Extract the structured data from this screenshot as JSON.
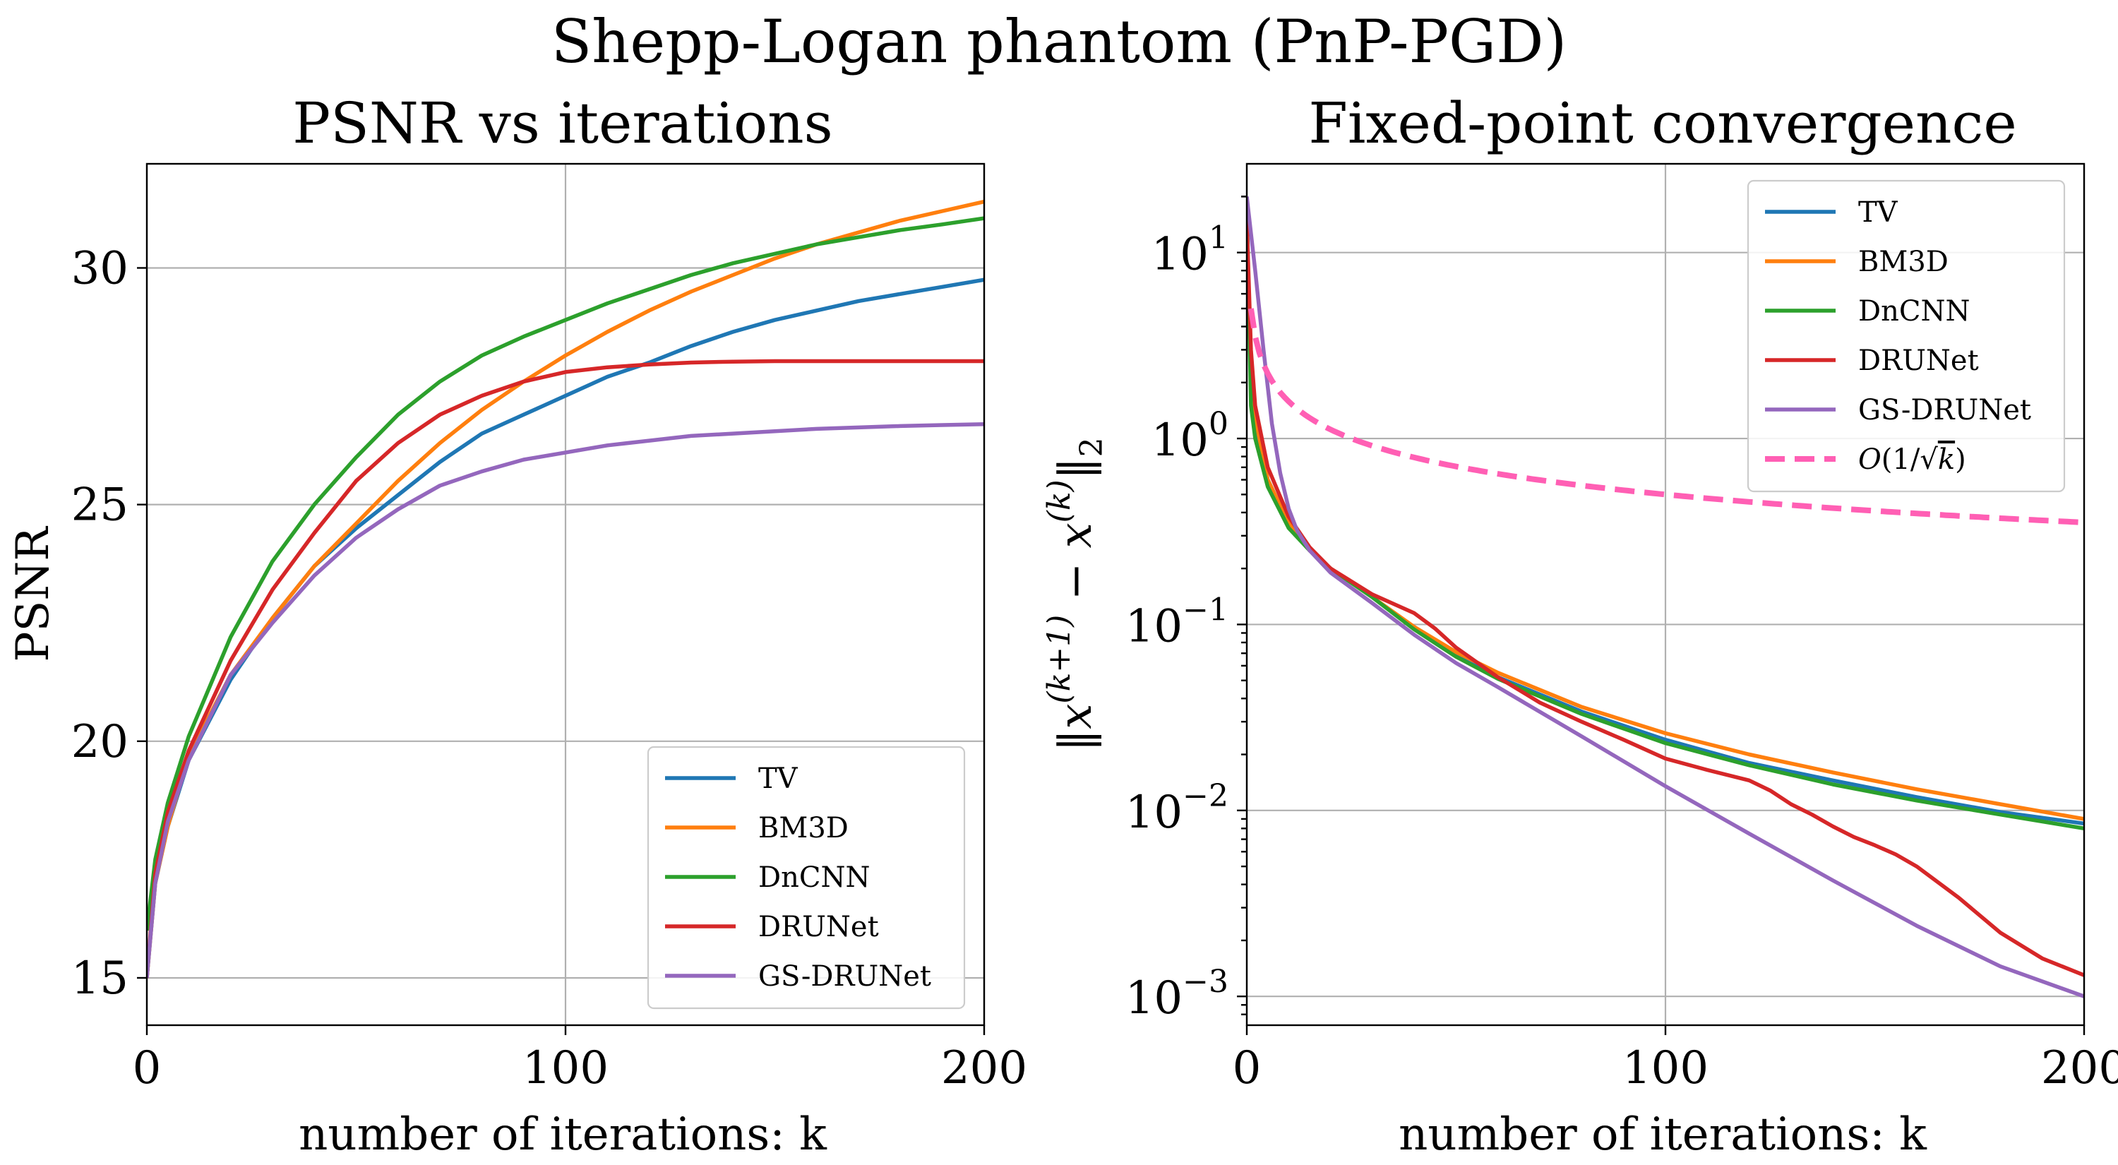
{
  "suptitle": "Shepp-Logan phantom (PnP-PGD)",
  "colors": {
    "TV": "#1f77b4",
    "BM3D": "#ff7f0e",
    "DnCNN": "#2ca02c",
    "DRUNet": "#d62728",
    "GS-DRUNet": "#9467bd",
    "ref": "#ff5fb4"
  },
  "chart_data": [
    {
      "type": "line",
      "title": "PSNR vs iterations",
      "xlabel": "number of iterations: k",
      "ylabel": "PSNR",
      "xlim": [
        0,
        200
      ],
      "ylim": [
        14,
        32.2
      ],
      "xticks": [
        0,
        100,
        200
      ],
      "xtick_labels": [
        "0",
        "100",
        "200"
      ],
      "yticks": [
        15,
        20,
        25,
        30
      ],
      "ytick_labels": [
        "15",
        "20",
        "25",
        "30"
      ],
      "yscale": "linear",
      "grid": true,
      "legend": "lower-right",
      "series": [
        {
          "name": "TV",
          "x": [
            0,
            2,
            5,
            10,
            20,
            30,
            40,
            50,
            60,
            70,
            80,
            90,
            100,
            110,
            120,
            130,
            140,
            150,
            160,
            170,
            180,
            190,
            200
          ],
          "y": [
            15.0,
            17.0,
            18.2,
            19.6,
            21.3,
            22.6,
            23.7,
            24.5,
            25.2,
            25.9,
            26.5,
            26.9,
            27.3,
            27.7,
            28.0,
            28.35,
            28.65,
            28.9,
            29.1,
            29.3,
            29.45,
            29.6,
            29.75
          ]
        },
        {
          "name": "BM3D",
          "x": [
            0,
            2,
            5,
            10,
            20,
            30,
            40,
            50,
            60,
            70,
            80,
            90,
            100,
            110,
            120,
            130,
            140,
            150,
            160,
            170,
            180,
            190,
            200
          ],
          "y": [
            15.0,
            17.0,
            18.2,
            19.7,
            21.4,
            22.6,
            23.7,
            24.6,
            25.5,
            26.3,
            27.0,
            27.6,
            28.15,
            28.65,
            29.1,
            29.5,
            29.85,
            30.2,
            30.5,
            30.75,
            31.0,
            31.2,
            31.4
          ]
        },
        {
          "name": "DnCNN",
          "x": [
            0,
            2,
            5,
            10,
            20,
            30,
            40,
            50,
            60,
            70,
            80,
            90,
            100,
            110,
            120,
            130,
            140,
            150,
            160,
            170,
            180,
            190,
            200
          ],
          "y": [
            16.0,
            17.5,
            18.7,
            20.1,
            22.2,
            23.8,
            25.0,
            26.0,
            26.9,
            27.6,
            28.15,
            28.55,
            28.9,
            29.25,
            29.55,
            29.85,
            30.1,
            30.3,
            30.5,
            30.65,
            30.8,
            30.92,
            31.05
          ]
        },
        {
          "name": "DRUNet",
          "x": [
            0,
            2,
            5,
            10,
            20,
            30,
            40,
            50,
            60,
            70,
            80,
            90,
            100,
            110,
            120,
            130,
            140,
            150,
            160,
            170,
            180,
            190,
            200
          ],
          "y": [
            15.0,
            17.2,
            18.5,
            19.8,
            21.7,
            23.2,
            24.4,
            25.5,
            26.3,
            26.9,
            27.3,
            27.6,
            27.8,
            27.9,
            27.96,
            28.0,
            28.02,
            28.03,
            28.03,
            28.03,
            28.03,
            28.03,
            28.03
          ]
        },
        {
          "name": "GS-DRUNet",
          "x": [
            0,
            2,
            5,
            10,
            20,
            30,
            40,
            50,
            60,
            70,
            80,
            90,
            100,
            110,
            120,
            130,
            140,
            150,
            160,
            170,
            180,
            190,
            200
          ],
          "y": [
            15.0,
            17.0,
            18.3,
            19.6,
            21.4,
            22.5,
            23.5,
            24.3,
            24.9,
            25.4,
            25.7,
            25.95,
            26.1,
            26.25,
            26.35,
            26.45,
            26.5,
            26.55,
            26.6,
            26.63,
            26.66,
            26.68,
            26.7
          ]
        }
      ]
    },
    {
      "type": "line",
      "title": "Fixed-point convergence",
      "xlabel": "number of iterations: k",
      "ylabel": "||x^(k+1) − x^(k)||₂",
      "xlim": [
        0,
        200
      ],
      "ylim": [
        0.0007,
        30
      ],
      "xticks": [
        0,
        100,
        200
      ],
      "xtick_labels": [
        "0",
        "100",
        "200"
      ],
      "yticks": [
        0.001,
        0.01,
        0.1,
        1,
        10
      ],
      "ytick_labels": [
        {
          "base": "10",
          "exp": "−3"
        },
        {
          "base": "10",
          "exp": "−2"
        },
        {
          "base": "10",
          "exp": "−1"
        },
        {
          "base": "10",
          "exp": "0"
        },
        {
          "base": "10",
          "exp": "1"
        }
      ],
      "yscale": "log",
      "grid": true,
      "legend": "upper-right",
      "series": [
        {
          "name": "TV",
          "x": [
            0,
            1,
            2,
            5,
            10,
            15,
            20,
            30,
            40,
            50,
            60,
            80,
            100,
            120,
            140,
            160,
            180,
            200
          ],
          "y": [
            10,
            2.2,
            1.2,
            0.6,
            0.35,
            0.25,
            0.2,
            0.14,
            0.095,
            0.068,
            0.052,
            0.034,
            0.024,
            0.018,
            0.0145,
            0.0118,
            0.0098,
            0.0085
          ]
        },
        {
          "name": "BM3D",
          "x": [
            0,
            1,
            2,
            5,
            10,
            15,
            20,
            30,
            40,
            50,
            60,
            80,
            100,
            120,
            140,
            160,
            180,
            200
          ],
          "y": [
            12,
            2.5,
            1.3,
            0.6,
            0.35,
            0.25,
            0.2,
            0.14,
            0.097,
            0.071,
            0.055,
            0.036,
            0.026,
            0.02,
            0.016,
            0.013,
            0.0108,
            0.009
          ]
        },
        {
          "name": "DnCNN",
          "x": [
            0,
            1,
            2,
            5,
            10,
            15,
            20,
            30,
            40,
            50,
            60,
            80,
            100,
            120,
            140,
            160,
            180,
            200
          ],
          "y": [
            18,
            1.5,
            1.0,
            0.55,
            0.33,
            0.25,
            0.2,
            0.14,
            0.094,
            0.067,
            0.051,
            0.033,
            0.023,
            0.0175,
            0.0138,
            0.0113,
            0.0095,
            0.008
          ]
        },
        {
          "name": "DRUNet",
          "x": [
            0,
            1,
            2,
            5,
            10,
            15,
            20,
            30,
            40,
            45,
            50,
            60,
            70,
            80,
            90,
            100,
            110,
            120,
            125,
            130,
            135,
            140,
            145,
            150,
            155,
            160,
            170,
            180,
            190,
            200
          ],
          "y": [
            15,
            3,
            1.5,
            0.7,
            0.38,
            0.26,
            0.2,
            0.145,
            0.115,
            0.095,
            0.075,
            0.052,
            0.038,
            0.03,
            0.024,
            0.019,
            0.0165,
            0.0145,
            0.0128,
            0.0108,
            0.0095,
            0.0082,
            0.0072,
            0.0065,
            0.0058,
            0.005,
            0.0034,
            0.0022,
            0.0016,
            0.0013
          ]
        },
        {
          "name": "GS-DRUNet",
          "x": [
            0,
            2,
            4,
            6,
            8,
            10,
            12,
            15,
            20,
            30,
            40,
            50,
            60,
            80,
            100,
            120,
            140,
            160,
            180,
            200
          ],
          "y": [
            20,
            8,
            3,
            1.2,
            0.65,
            0.42,
            0.32,
            0.25,
            0.19,
            0.13,
            0.088,
            0.062,
            0.046,
            0.025,
            0.0135,
            0.0075,
            0.0042,
            0.0024,
            0.00145,
            0.001
          ]
        },
        {
          "name": "O(1/√k)",
          "dashed": true,
          "formula": "C/sqrt(k)",
          "C": 5.0,
          "x": [
            1,
            200
          ]
        }
      ],
      "legend_labels": {
        "TV": "TV",
        "BM3D": "BM3D",
        "DnCNN": "DnCNN",
        "DRUNet": "DRUNet",
        "GS-DRUNet": "GS-DRUNet",
        "ref": "O(1/√k)"
      }
    }
  ]
}
